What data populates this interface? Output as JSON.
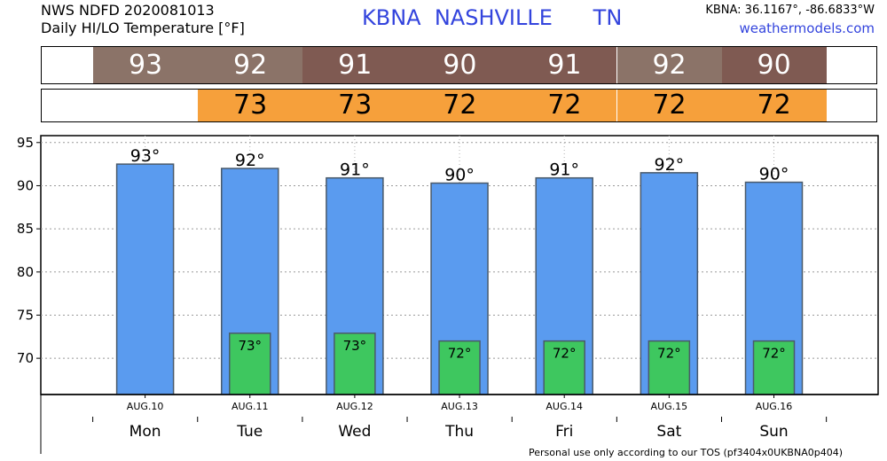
{
  "header": {
    "line1": "NWS NDFD 2020081013",
    "line2": "Daily HI/LO Temperature [°F]",
    "station_title": "KBNA  NASHVILLE      TN",
    "coords": "KBNA: 36.1167°, -86.6833°W",
    "site": "weathermodels.com"
  },
  "colors": {
    "hi_strip": [
      "#8b7368",
      "#8b7368",
      "#7f5a52",
      "#7f5a52",
      "#7f5a52",
      "#8b7368",
      "#7f5a52"
    ],
    "lo_strip": "#f6a03b",
    "hi_bar": "#5a9bef",
    "lo_bar": "#3ec75f"
  },
  "hi_strip": [
    "93",
    "92",
    "91",
    "90",
    "91",
    "92",
    "90"
  ],
  "lo_strip": [
    "73",
    "73",
    "72",
    "72",
    "72",
    "72"
  ],
  "chart_data": {
    "type": "bar",
    "categories": [
      "AUG.10",
      "AUG.11",
      "AUG.12",
      "AUG.13",
      "AUG.14",
      "AUG.15",
      "AUG.16"
    ],
    "days": [
      "Mon",
      "Tue",
      "Wed",
      "Thu",
      "Fri",
      "Sat",
      "Sun"
    ],
    "series": [
      {
        "name": "HI",
        "values": [
          92.5,
          92,
          90.9,
          90.3,
          90.9,
          91.5,
          90.4
        ],
        "labels": [
          "93°",
          "92°",
          "91°",
          "90°",
          "91°",
          "92°",
          "90°"
        ]
      },
      {
        "name": "LO",
        "values": [
          null,
          72.9,
          72.9,
          72,
          72,
          72,
          72
        ],
        "labels": [
          "",
          "73°",
          "73°",
          "72°",
          "72°",
          "72°",
          "72°"
        ]
      }
    ],
    "ylim": [
      65.8,
      95.8
    ],
    "yticks": [
      70,
      75,
      80,
      85,
      90,
      95
    ],
    "grid": true
  },
  "footer": "Personal use only according to our TOS (pf3404x0UKBNA0p404)"
}
